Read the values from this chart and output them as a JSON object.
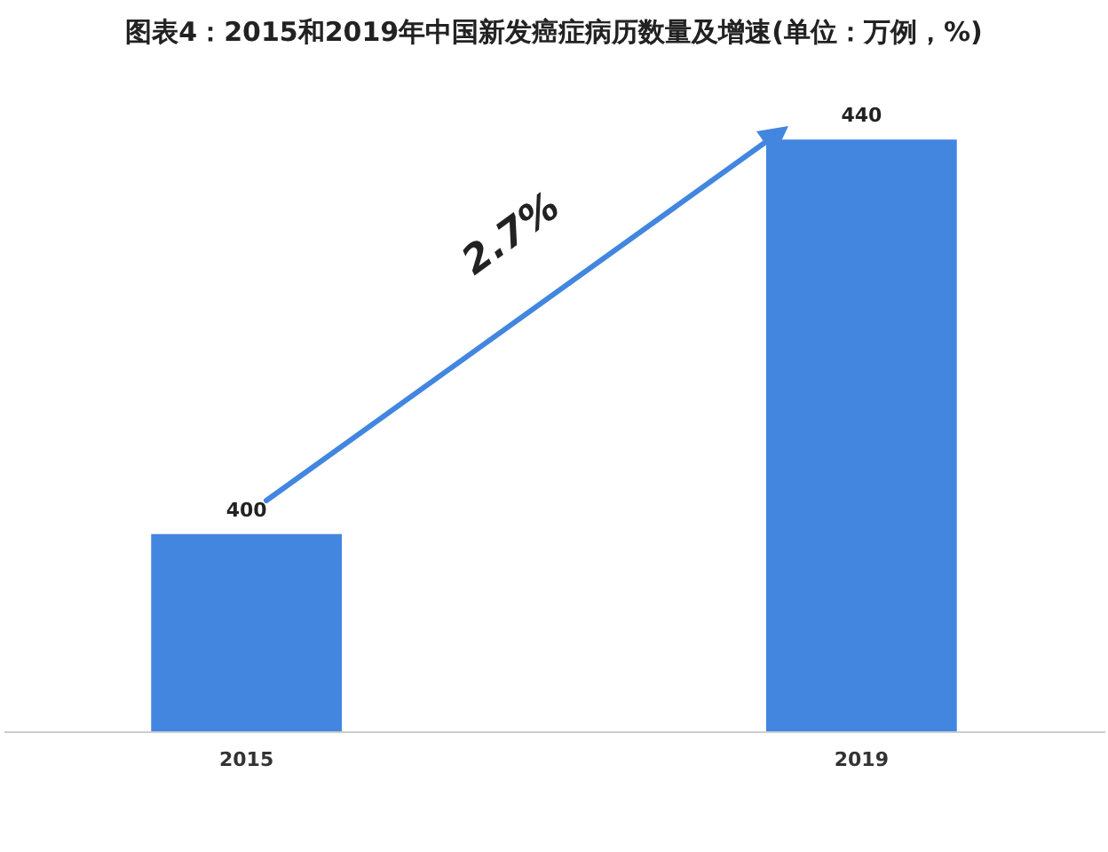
{
  "chart_data": {
    "type": "bar",
    "title": "图表4：2015和2019年中国新发癌症病历数量及增速(单位：万例，%)",
    "categories": [
      "2015",
      "2019"
    ],
    "values": [
      400,
      440
    ],
    "color": "#4286e0",
    "data_labels": true,
    "tick_labels": "x",
    "annotations": [
      "2.7%"
    ]
  }
}
